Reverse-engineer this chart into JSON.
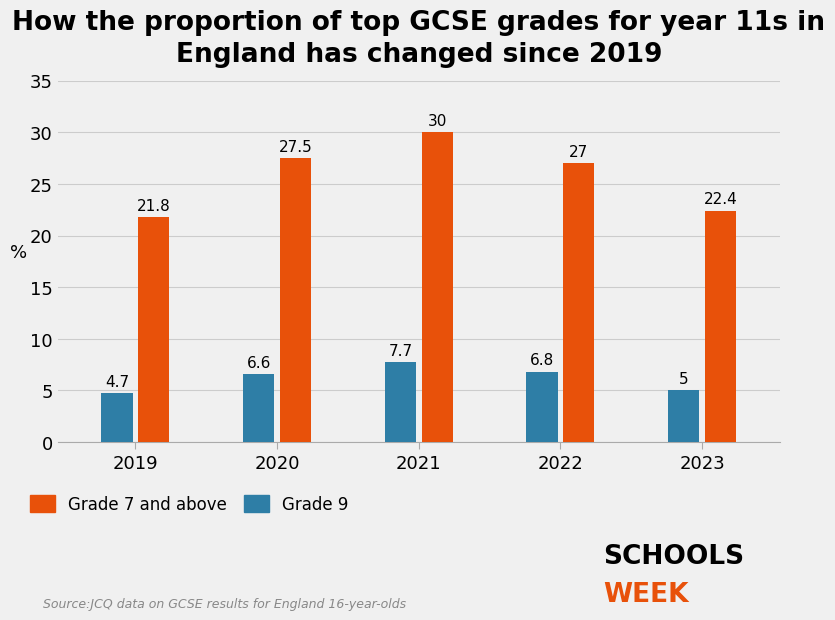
{
  "title": "How the proportion of top GCSE grades for year 11s in\nEngland has changed since 2019",
  "years": [
    "2019",
    "2020",
    "2021",
    "2022",
    "2023"
  ],
  "grade7_values": [
    21.8,
    27.5,
    30.0,
    27.0,
    22.4
  ],
  "grade9_values": [
    4.7,
    6.6,
    7.7,
    6.8,
    5.0
  ],
  "grade7_color": "#E8510A",
  "grade9_color": "#2E7EA6",
  "ylabel": "%",
  "ylim": [
    0,
    35
  ],
  "yticks": [
    0,
    5,
    10,
    15,
    20,
    25,
    30,
    35
  ],
  "bar_width": 0.22,
  "bar_gap": 0.04,
  "background_color": "#f0f0f0",
  "title_fontsize": 19,
  "tick_fontsize": 13,
  "value_fontsize": 11,
  "source_text": "Source:JCQ data on GCSE results for England 16-year-olds",
  "legend_grade7": "Grade 7 and above",
  "legend_grade9": "Grade 9",
  "schools_week_black": "SCHOOLS",
  "schools_week_orange": "WEEK"
}
